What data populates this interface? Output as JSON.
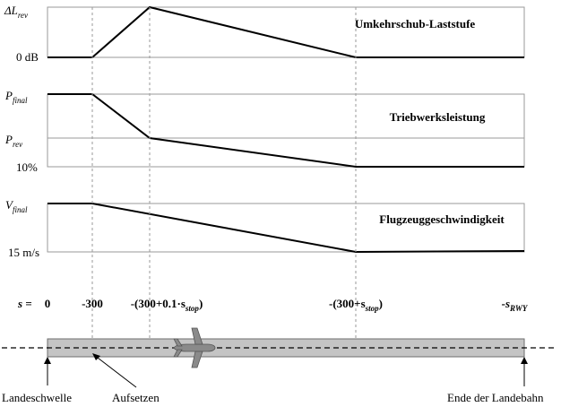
{
  "panels": {
    "reverse_thrust": {
      "title": "Umkehrschub-Laststufe",
      "top_label_main": "ΔL",
      "top_label_sub": "rev",
      "bottom_label": "0 dB"
    },
    "engine_power": {
      "title": "Triebwerksleistung",
      "top_label_main": "P",
      "top_label_sub": "final",
      "mid_label_main": "P",
      "mid_label_sub": "rev",
      "bottom_label": "10%"
    },
    "aircraft_speed": {
      "title": "Flugzeuggeschwindigkeit",
      "top_label_main": "V",
      "top_label_sub": "final",
      "bottom_label": "15 m/s"
    }
  },
  "axis": {
    "s_label": "s =",
    "ticks": [
      {
        "main": "0",
        "sub": "",
        "tail": ""
      },
      {
        "main": "-300",
        "sub": "",
        "tail": ""
      },
      {
        "main": "-(300+0.1·s",
        "sub": "stop",
        "tail": ")"
      },
      {
        "main": "-(300+s",
        "sub": "stop",
        "tail": ")"
      },
      {
        "main": "-s",
        "sub": "RWY",
        "tail": ""
      }
    ]
  },
  "runway": {
    "labels": {
      "threshold": "Landeschwelle",
      "touchdown": "Aufsetzen",
      "end": "Ende der Landebahn"
    }
  },
  "icons": {
    "aircraft": "airplane-icon"
  }
}
